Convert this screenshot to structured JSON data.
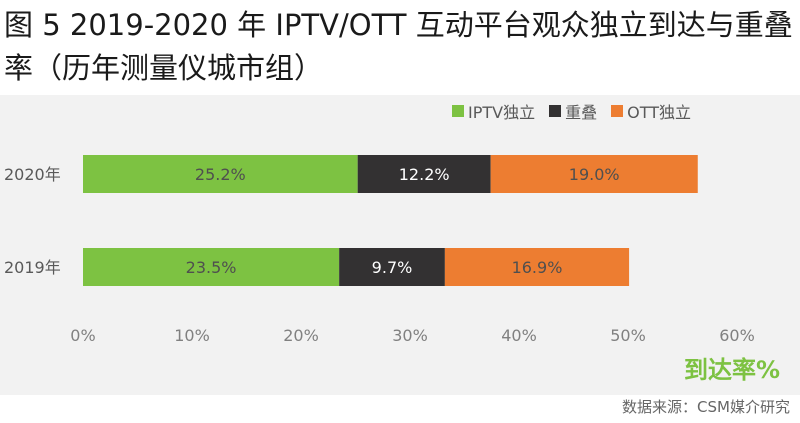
{
  "title": "图 5 2019-2020 年 IPTV/OTT 互动平台观众独立到达与重叠率（历年测量仪城市组）",
  "source": "数据来源：CSM媒介研究",
  "chart_data": {
    "type": "bar",
    "orientation": "horizontal",
    "stacked": true,
    "categories": [
      "2020年",
      "2019年"
    ],
    "series": [
      {
        "name": "IPTV独立",
        "color": "#7dc242",
        "values": [
          25.2,
          23.5
        ],
        "labels": [
          "25.2%",
          "23.5%"
        ],
        "label_color": "#4f4f4f"
      },
      {
        "name": "重叠",
        "color": "#333132",
        "values": [
          12.2,
          9.7
        ],
        "labels": [
          "12.2%",
          "9.7%"
        ],
        "label_color": "#ffffff"
      },
      {
        "name": "OTT独立",
        "color": "#ed7d31",
        "values": [
          19.0,
          16.9
        ],
        "labels": [
          "19.0%",
          "16.9%"
        ],
        "label_color": "#4f4f4f"
      }
    ],
    "xlim": [
      0,
      60
    ],
    "xticks": [
      0,
      10,
      20,
      30,
      40,
      50,
      60
    ],
    "xtick_labels": [
      "0%",
      "10%",
      "20%",
      "30%",
      "40%",
      "50%",
      "60%"
    ],
    "xlabel": "到达率%",
    "xlabel_color": "#7dc242",
    "legend_position": "top-right",
    "grid": false
  }
}
